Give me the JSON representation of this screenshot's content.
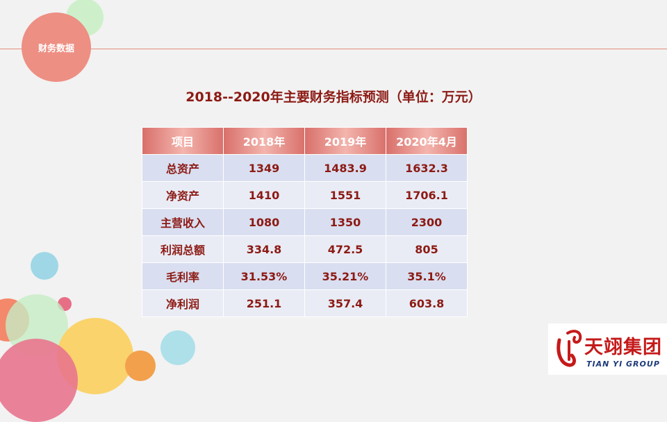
{
  "section_badge": {
    "label": "财务数据"
  },
  "title": "2018--2020年主要财务指标预测（单位：万元）",
  "table": {
    "headers": [
      "项目",
      "2018年",
      "2019年",
      "2020年4月"
    ],
    "rows": [
      [
        "总资产",
        "1349",
        "1483.9",
        "1632.3"
      ],
      [
        "净资产",
        "1410",
        "1551",
        "1706.1"
      ],
      [
        "主营收入",
        "1080",
        "1350",
        "2300"
      ],
      [
        "利润总额",
        "334.8",
        "472.5",
        "805"
      ],
      [
        "毛利率",
        "31.53%",
        "35.21%",
        "35.1%"
      ],
      [
        "净利润",
        "251.1",
        "357.4",
        "603.8"
      ]
    ]
  },
  "logo": {
    "name_cn": "天翊集团",
    "name_en": "TIAN YI GROUP"
  },
  "colors": {
    "accent": "#8c1a14",
    "header_red": "#d9706b",
    "badge": "#ed8f83",
    "row_odd": "#d9dff0",
    "row_even": "#e9ecf5"
  }
}
